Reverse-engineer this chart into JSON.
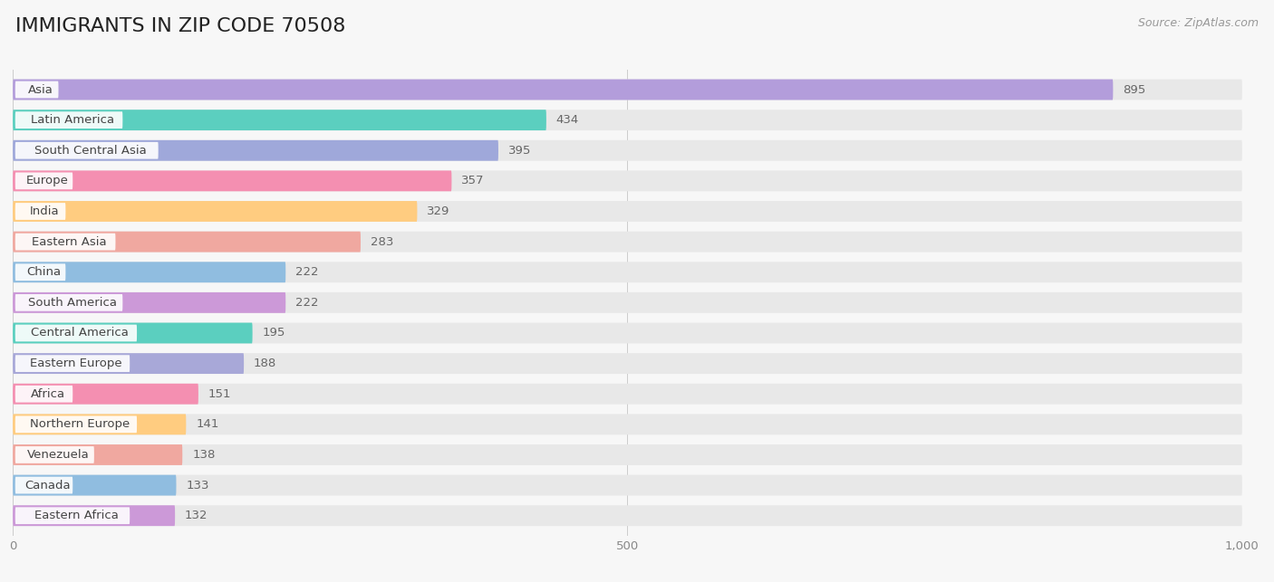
{
  "title": "IMMIGRANTS IN ZIP CODE 70508",
  "source": "Source: ZipAtlas.com",
  "categories": [
    "Asia",
    "Latin America",
    "South Central Asia",
    "Europe",
    "India",
    "Eastern Asia",
    "China",
    "South America",
    "Central America",
    "Eastern Europe",
    "Africa",
    "Northern Europe",
    "Venezuela",
    "Canada",
    "Eastern Africa"
  ],
  "values": [
    895,
    434,
    395,
    357,
    329,
    283,
    222,
    222,
    195,
    188,
    151,
    141,
    138,
    133,
    132
  ],
  "bar_colors": [
    "#b39ddb",
    "#5bcfbf",
    "#9fa8da",
    "#f48fb1",
    "#ffcc80",
    "#f0a8a0",
    "#90bde0",
    "#cc99d8",
    "#5bcfbf",
    "#a8a8d8",
    "#f48fb1",
    "#ffcc80",
    "#f0a8a0",
    "#90bde0",
    "#cc99d8"
  ],
  "xlim": [
    0,
    1000
  ],
  "xticks": [
    0,
    500,
    1000
  ],
  "background_color": "#f7f7f7",
  "bar_bg_color": "#e8e8e8",
  "title_fontsize": 16,
  "label_fontsize": 9.5,
  "value_fontsize": 9.5
}
